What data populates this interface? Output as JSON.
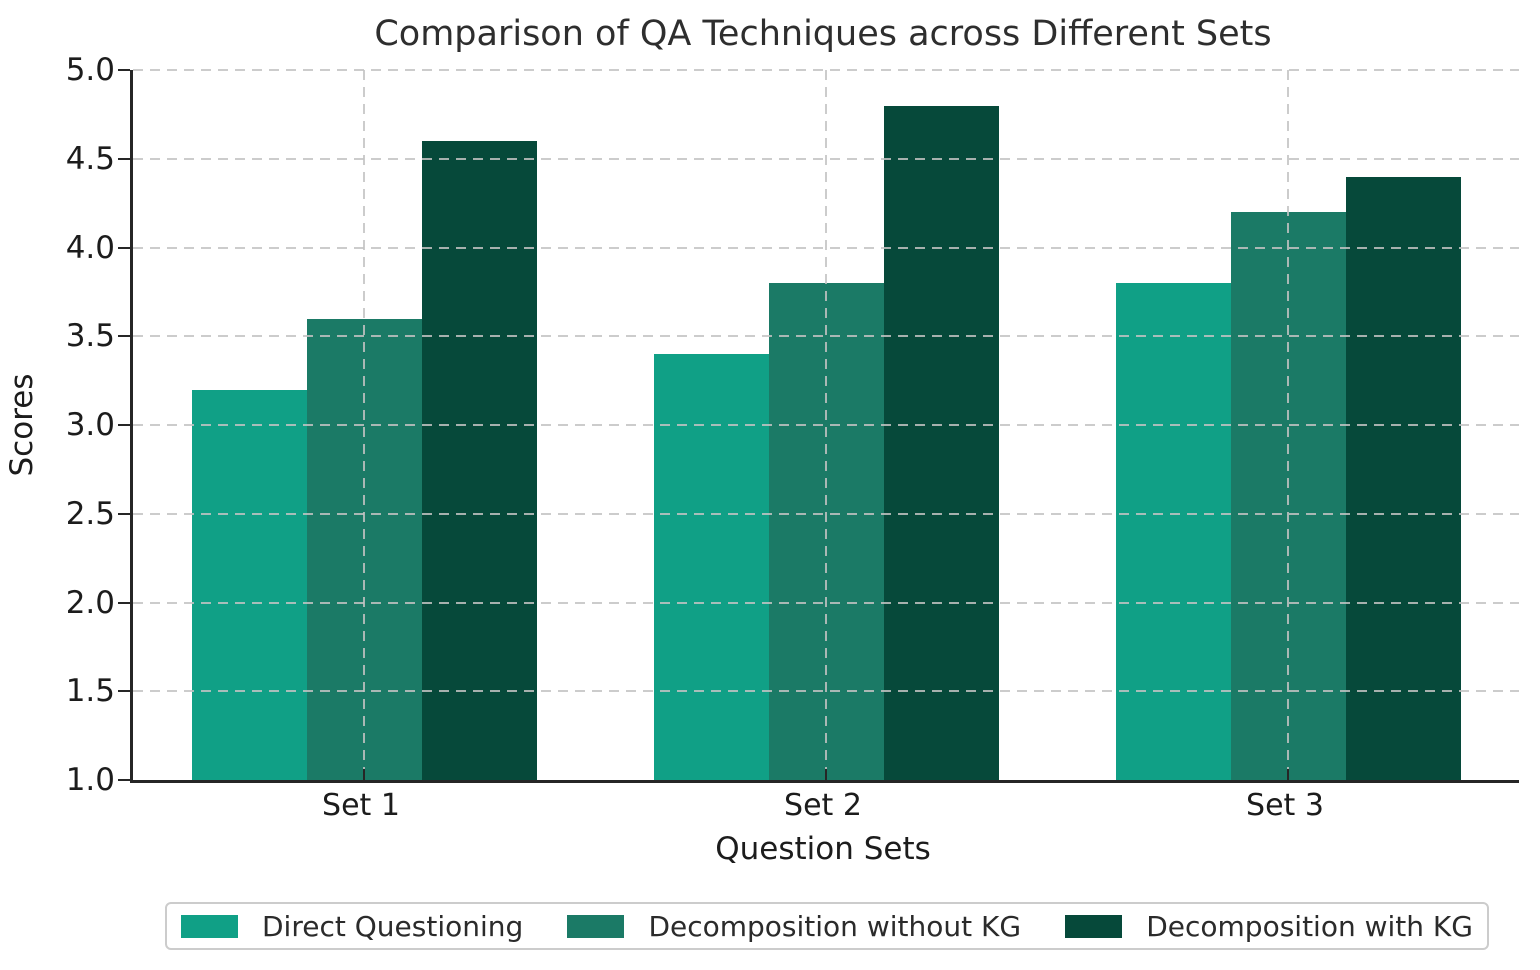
{
  "chart_data": {
    "type": "bar",
    "title": "Comparison of QA Techniques across Different Sets",
    "xlabel": "Question Sets",
    "ylabel": "Scores",
    "categories": [
      "Set 1",
      "Set 2",
      "Set 3"
    ],
    "series": [
      {
        "name": "Direct Questioning",
        "color": "#10A086",
        "values": [
          3.2,
          3.4,
          3.8
        ]
      },
      {
        "name": "Decomposition without KG",
        "color": "#1B7A66",
        "values": [
          3.6,
          3.8,
          4.2
        ]
      },
      {
        "name": "Decomposition with KG",
        "color": "#06493A",
        "values": [
          4.6,
          4.8,
          4.4
        ]
      }
    ],
    "ylim": [
      1.0,
      5.0
    ],
    "yticks": [
      1.0,
      1.5,
      2.0,
      2.5,
      3.0,
      3.5,
      4.0,
      4.5,
      5.0
    ],
    "ytick_labels": [
      "1.0",
      "1.5",
      "2.0",
      "2.5",
      "3.0",
      "3.5",
      "4.0",
      "4.5",
      "5.0"
    ],
    "grid": true,
    "grid_style": "dashed",
    "grid_above_bars": true,
    "legend_position": "bottom",
    "colors": {
      "grid": "#c3c3c3",
      "axis": "#262626",
      "text": "#1c1c1c",
      "title": "#2e2e2e",
      "legend_border": "#cccccc",
      "background": "#ffffff"
    }
  }
}
